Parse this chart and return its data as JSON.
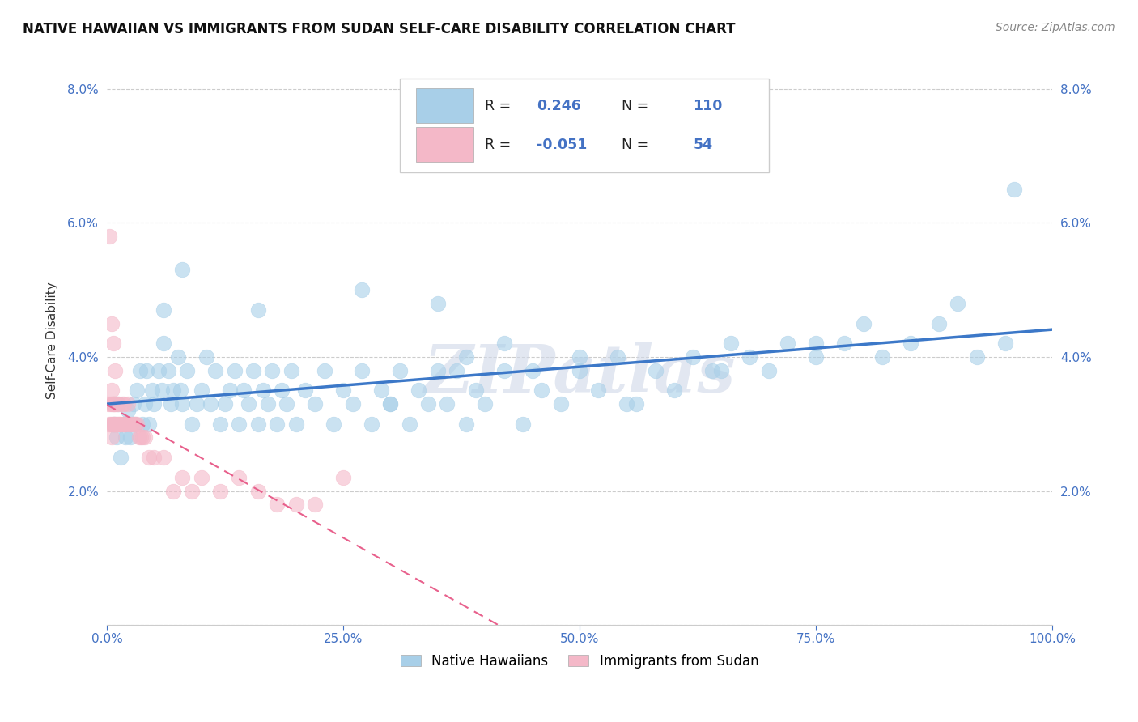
{
  "title": "NATIVE HAWAIIAN VS IMMIGRANTS FROM SUDAN SELF-CARE DISABILITY CORRELATION CHART",
  "source": "Source: ZipAtlas.com",
  "ylabel": "Self-Care Disability",
  "watermark": "ZIPatlas",
  "xlim": [
    0.0,
    1.0
  ],
  "ylim": [
    0.0,
    0.085
  ],
  "xticks": [
    0.0,
    0.25,
    0.5,
    0.75,
    1.0
  ],
  "xtick_labels": [
    "0.0%",
    "25.0%",
    "50.0%",
    "75.0%",
    "100.0%"
  ],
  "yticks": [
    0.0,
    0.02,
    0.04,
    0.06,
    0.08
  ],
  "ytick_labels": [
    "",
    "2.0%",
    "4.0%",
    "6.0%",
    "8.0%"
  ],
  "legend_labels": [
    "Native Hawaiians",
    "Immigrants from Sudan"
  ],
  "blue_color": "#a8cfe8",
  "pink_color": "#f4b8c8",
  "blue_line_color": "#3c78c8",
  "pink_line_color": "#e8608c",
  "R_blue": 0.246,
  "N_blue": 110,
  "R_pink": -0.051,
  "N_pink": 54,
  "blue_scatter_x": [
    0.008,
    0.01,
    0.012,
    0.015,
    0.018,
    0.02,
    0.022,
    0.025,
    0.028,
    0.03,
    0.032,
    0.035,
    0.038,
    0.04,
    0.042,
    0.045,
    0.048,
    0.05,
    0.055,
    0.058,
    0.06,
    0.065,
    0.068,
    0.07,
    0.075,
    0.078,
    0.08,
    0.085,
    0.09,
    0.095,
    0.1,
    0.105,
    0.11,
    0.115,
    0.12,
    0.125,
    0.13,
    0.135,
    0.14,
    0.145,
    0.15,
    0.155,
    0.16,
    0.165,
    0.17,
    0.175,
    0.18,
    0.185,
    0.19,
    0.195,
    0.2,
    0.21,
    0.22,
    0.23,
    0.24,
    0.25,
    0.26,
    0.27,
    0.28,
    0.29,
    0.3,
    0.31,
    0.32,
    0.33,
    0.34,
    0.35,
    0.36,
    0.37,
    0.38,
    0.39,
    0.4,
    0.42,
    0.44,
    0.46,
    0.48,
    0.5,
    0.52,
    0.54,
    0.56,
    0.58,
    0.6,
    0.62,
    0.64,
    0.66,
    0.68,
    0.7,
    0.72,
    0.75,
    0.78,
    0.8,
    0.82,
    0.85,
    0.88,
    0.9,
    0.92,
    0.95,
    0.96,
    0.27,
    0.35,
    0.38,
    0.06,
    0.08,
    0.42,
    0.16,
    0.3,
    0.5,
    0.45,
    0.55,
    0.65,
    0.75
  ],
  "blue_scatter_y": [
    0.03,
    0.028,
    0.033,
    0.025,
    0.03,
    0.028,
    0.032,
    0.028,
    0.033,
    0.03,
    0.035,
    0.038,
    0.03,
    0.033,
    0.038,
    0.03,
    0.035,
    0.033,
    0.038,
    0.035,
    0.042,
    0.038,
    0.033,
    0.035,
    0.04,
    0.035,
    0.033,
    0.038,
    0.03,
    0.033,
    0.035,
    0.04,
    0.033,
    0.038,
    0.03,
    0.033,
    0.035,
    0.038,
    0.03,
    0.035,
    0.033,
    0.038,
    0.03,
    0.035,
    0.033,
    0.038,
    0.03,
    0.035,
    0.033,
    0.038,
    0.03,
    0.035,
    0.033,
    0.038,
    0.03,
    0.035,
    0.033,
    0.038,
    0.03,
    0.035,
    0.033,
    0.038,
    0.03,
    0.035,
    0.033,
    0.038,
    0.033,
    0.038,
    0.03,
    0.035,
    0.033,
    0.038,
    0.03,
    0.035,
    0.033,
    0.038,
    0.035,
    0.04,
    0.033,
    0.038,
    0.035,
    0.04,
    0.038,
    0.042,
    0.04,
    0.038,
    0.042,
    0.04,
    0.042,
    0.045,
    0.04,
    0.042,
    0.045,
    0.048,
    0.04,
    0.042,
    0.065,
    0.05,
    0.048,
    0.04,
    0.047,
    0.053,
    0.042,
    0.047,
    0.033,
    0.04,
    0.038,
    0.033,
    0.038,
    0.042
  ],
  "pink_scatter_x": [
    0.002,
    0.003,
    0.004,
    0.004,
    0.005,
    0.005,
    0.006,
    0.006,
    0.007,
    0.007,
    0.008,
    0.008,
    0.009,
    0.009,
    0.01,
    0.01,
    0.011,
    0.012,
    0.013,
    0.014,
    0.015,
    0.016,
    0.017,
    0.018,
    0.019,
    0.02,
    0.022,
    0.024,
    0.026,
    0.028,
    0.03,
    0.032,
    0.034,
    0.036,
    0.038,
    0.04,
    0.045,
    0.05,
    0.06,
    0.07,
    0.08,
    0.09,
    0.1,
    0.12,
    0.14,
    0.16,
    0.18,
    0.2,
    0.22,
    0.25,
    0.003,
    0.005,
    0.007,
    0.009
  ],
  "pink_scatter_y": [
    0.033,
    0.03,
    0.033,
    0.03,
    0.035,
    0.028,
    0.033,
    0.03,
    0.033,
    0.03,
    0.033,
    0.03,
    0.033,
    0.03,
    0.033,
    0.03,
    0.03,
    0.033,
    0.03,
    0.03,
    0.03,
    0.033,
    0.03,
    0.033,
    0.03,
    0.03,
    0.033,
    0.03,
    0.03,
    0.03,
    0.03,
    0.03,
    0.028,
    0.028,
    0.028,
    0.028,
    0.025,
    0.025,
    0.025,
    0.02,
    0.022,
    0.02,
    0.022,
    0.02,
    0.022,
    0.02,
    0.018,
    0.018,
    0.018,
    0.022,
    0.058,
    0.045,
    0.042,
    0.038
  ]
}
